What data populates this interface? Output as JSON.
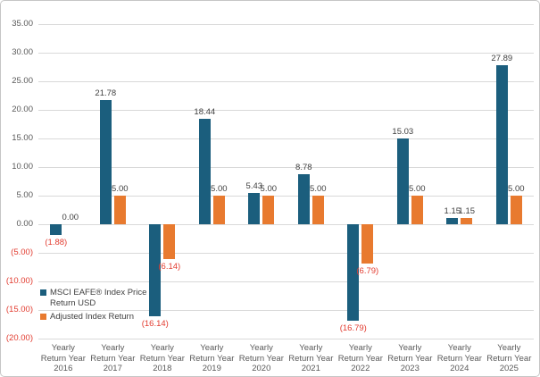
{
  "chart_data": {
    "type": "bar",
    "title": "",
    "xlabel": "",
    "ylabel": "",
    "grid": true,
    "legend_position": "inside bottom-left",
    "categories": [
      "Yearly Return Year 2016",
      "Yearly Return Year 2017",
      "Yearly Return Year 2018",
      "Yearly Return Year 2019",
      "Yearly Return Year 2020",
      "Yearly Return Year 2021",
      "Yearly Return Year 2022",
      "Yearly Return Year 2023",
      "Yearly Return Year 2024",
      "Yearly Return Year 2025"
    ],
    "category_lines": [
      [
        "Yearly",
        "Return Year",
        "2016"
      ],
      [
        "Yearly",
        "Return Year",
        "2017"
      ],
      [
        "Yearly",
        "Return Year",
        "2018"
      ],
      [
        "Yearly",
        "Return Year",
        "2019"
      ],
      [
        "Yearly",
        "Return Year",
        "2020"
      ],
      [
        "Yearly",
        "Return Year",
        "2021"
      ],
      [
        "Yearly",
        "Return Year",
        "2022"
      ],
      [
        "Yearly",
        "Return Year",
        "2023"
      ],
      [
        "Yearly",
        "Return Year",
        "2024"
      ],
      [
        "Yearly",
        "Return Year",
        "2025"
      ]
    ],
    "series": [
      {
        "name": "MSCI EAFE® Index Price Return USD",
        "name_lines": [
          "MSCI EAFE® Index Price",
          "Return USD"
        ],
        "color": "#1B5E7D",
        "values": [
          -1.88,
          21.78,
          -16.14,
          18.44,
          5.43,
          8.78,
          -16.79,
          15.03,
          1.15,
          27.89
        ],
        "labels": [
          "(1.88)",
          "21.78",
          "(16.14)",
          "18.44",
          "5.43",
          "8.78",
          "(16.79)",
          "15.03",
          "1.15",
          "27.89"
        ]
      },
      {
        "name": "Adjusted Index Return",
        "name_lines": [
          "Adjusted Index Return"
        ],
        "color": "#E87A2F",
        "values": [
          0.0,
          5.0,
          -6.14,
          5.0,
          5.0,
          5.0,
          -6.79,
          5.0,
          1.15,
          5.0
        ],
        "labels": [
          "0.00",
          "5.00",
          "(6.14)",
          "5.00",
          "5.00",
          "5.00",
          "(6.79)",
          "5.00",
          "1.15",
          "5.00"
        ]
      }
    ],
    "y_axis": {
      "min": -20,
      "max": 35,
      "step": 5,
      "tick_labels": [
        "35.00",
        "30.00",
        "25.00",
        "20.00",
        "15.00",
        "10.00",
        "5.00",
        "0.00",
        "(5.00)",
        "(10.00)",
        "(15.00)",
        "(20.00)"
      ]
    },
    "colors": {
      "positive_text": "#404040",
      "negative_text": "#E23C30",
      "gridline": "#D9D9D9",
      "axis_text": "#595959"
    }
  }
}
